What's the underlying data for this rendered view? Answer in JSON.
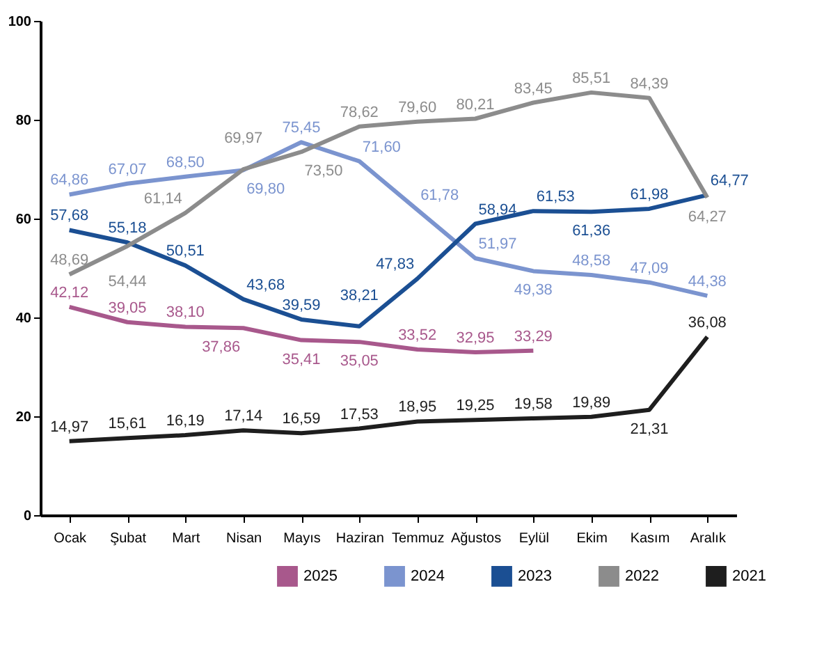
{
  "chart_data": {
    "type": "line",
    "categories": [
      "Ocak",
      "Şubat",
      "Mart",
      "Nisan",
      "Mayıs",
      "Haziran",
      "Temmuz",
      "Ağustos",
      "Eylül",
      "Ekim",
      "Kasım",
      "Aralık"
    ],
    "series": [
      {
        "name": "2025",
        "color": "#a8588c",
        "values": [
          42.12,
          39.05,
          38.1,
          37.86,
          35.41,
          35.05,
          33.52,
          32.95,
          33.29,
          null,
          null,
          null
        ],
        "value_labels": [
          "42,12",
          "39,05",
          "38,10",
          "37,86",
          "35,41",
          "35,05",
          "33,52",
          "32,95",
          "33,29",
          null,
          null,
          null
        ]
      },
      {
        "name": "2024",
        "color": "#7b94cf",
        "values": [
          64.86,
          67.07,
          68.5,
          69.8,
          75.45,
          71.6,
          61.78,
          51.97,
          49.38,
          48.58,
          47.09,
          44.38
        ],
        "value_labels": [
          "64,86",
          "67,07",
          "68,50",
          "69,80",
          "75,45",
          "71,60",
          "61,78",
          "51,97",
          "49,38",
          "48,58",
          "47,09",
          "44,38"
        ]
      },
      {
        "name": "2023",
        "color": "#1b4f93",
        "values": [
          57.68,
          55.18,
          50.51,
          43.68,
          39.59,
          38.21,
          47.83,
          58.94,
          61.53,
          61.36,
          61.98,
          64.77
        ],
        "value_labels": [
          "57,68",
          "55,18",
          "50,51",
          "43,68",
          "39,59",
          "38,21",
          "47,83",
          "58,94",
          "61,53",
          "61,36",
          "61,98",
          "64,77"
        ]
      },
      {
        "name": "2022",
        "color": "#8c8c8c",
        "values": [
          48.69,
          54.44,
          61.14,
          69.97,
          73.5,
          78.62,
          79.6,
          80.21,
          83.45,
          85.51,
          84.39,
          64.27
        ],
        "value_labels": [
          "48,69",
          "54,44",
          "61,14",
          "69,97",
          "73,50",
          "78,62",
          "79,60",
          "80,21",
          "83,45",
          "85,51",
          "84,39",
          "64,27"
        ]
      },
      {
        "name": "2021",
        "color": "#1e1e1e",
        "values": [
          14.97,
          15.61,
          16.19,
          17.14,
          16.59,
          17.53,
          18.95,
          19.25,
          19.58,
          19.89,
          21.31,
          36.08
        ],
        "value_labels": [
          "14,97",
          "15,61",
          "16,19",
          "17,14",
          "16,59",
          "17,53",
          "18,95",
          "19,25",
          "19,58",
          "19,89",
          "21,31",
          "36,08"
        ]
      }
    ],
    "ylim": [
      0,
      100
    ],
    "yticks": [
      0,
      20,
      40,
      60,
      80,
      100
    ],
    "grid": false,
    "legend": "bottom right"
  }
}
